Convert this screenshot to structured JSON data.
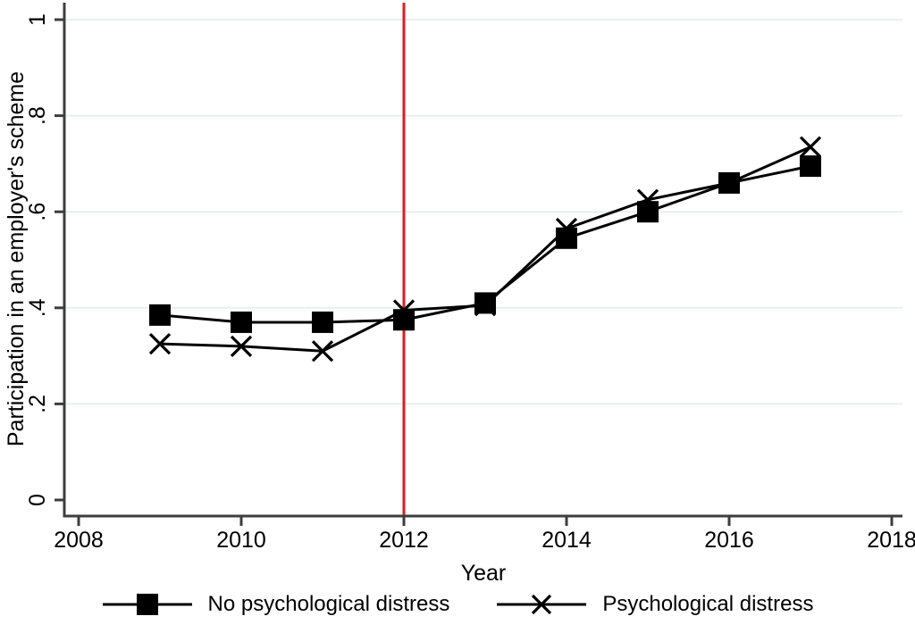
{
  "chart_data": {
    "type": "line",
    "x": [
      2009,
      2010,
      2011,
      2012,
      2013,
      2014,
      2015,
      2016,
      2017
    ],
    "series": [
      {
        "name": "No psychological distress",
        "marker": "square",
        "values": [
          0.385,
          0.37,
          0.37,
          0.375,
          0.41,
          0.545,
          0.6,
          0.66,
          0.695
        ]
      },
      {
        "name": "Psychological distress",
        "marker": "x",
        "values": [
          0.325,
          0.32,
          0.31,
          0.395,
          0.405,
          0.565,
          0.625,
          0.66,
          0.735
        ]
      }
    ],
    "title": "",
    "xlabel": "Year",
    "ylabel": "Participation in an employer's scheme",
    "xlim": [
      2008,
      2018
    ],
    "ylim": [
      0,
      1
    ],
    "x_ticks": {
      "values": [
        2008,
        2010,
        2012,
        2014,
        2016,
        2018
      ],
      "labels": [
        "2008",
        "2010",
        "2012",
        "2014",
        "2016",
        "2018"
      ]
    },
    "y_ticks": {
      "values": [
        0,
        0.2,
        0.4,
        0.6,
        0.8,
        1
      ],
      "labels": [
        "0",
        ".2",
        ".4",
        ".6",
        ".8",
        "1"
      ]
    },
    "grid": true,
    "legend_position": "bottom",
    "vline": {
      "x": 2012,
      "color": "#e31c1c"
    },
    "colors": {
      "series": "#000000",
      "axis": "#3d3d3d",
      "grid": "#e8f0ee",
      "background": "#ffffff"
    }
  }
}
